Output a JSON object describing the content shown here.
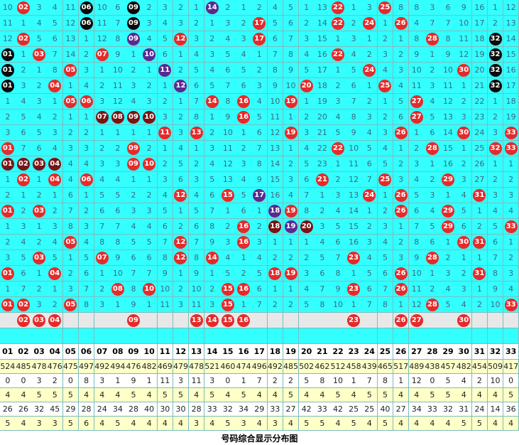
{
  "palette": {
    "r": "#e62a2a",
    "k": "#0a0a0a",
    "p": "#5a2a90",
    "m": "#7a1414"
  },
  "grid": {
    "rows": [
      [
        10,
        {
          "t": "02",
          "c": "r"
        },
        3,
        4,
        11,
        {
          "t": "06",
          "c": "k"
        },
        10,
        6,
        {
          "t": "09",
          "c": "k"
        },
        2,
        3,
        2,
        1,
        {
          "t": "14",
          "c": "p"
        },
        2,
        1,
        2,
        4,
        5,
        1,
        13,
        {
          "t": "22",
          "c": "r"
        },
        1,
        3,
        {
          "t": "25",
          "c": "r"
        },
        8,
        8,
        3,
        6,
        9,
        16,
        1,
        12
      ],
      [
        11,
        1,
        4,
        5,
        12,
        {
          "t": "06",
          "c": "k"
        },
        11,
        7,
        {
          "t": "09",
          "c": "k"
        },
        3,
        4,
        3,
        2,
        1,
        3,
        2,
        {
          "t": "17",
          "c": "r"
        },
        5,
        6,
        2,
        14,
        {
          "t": "22",
          "c": "r"
        },
        2,
        {
          "t": "24",
          "c": "r"
        },
        1,
        {
          "t": "26",
          "c": "r"
        },
        4,
        7,
        7,
        10,
        17,
        2,
        13
      ],
      [
        12,
        {
          "t": "02",
          "c": "r"
        },
        5,
        6,
        13,
        1,
        12,
        8,
        {
          "t": "09",
          "c": "p"
        },
        4,
        5,
        {
          "t": "12",
          "c": "r"
        },
        3,
        2,
        4,
        3,
        {
          "t": "17",
          "c": "r"
        },
        6,
        7,
        3,
        15,
        1,
        3,
        1,
        2,
        1,
        8,
        {
          "t": "28",
          "c": "r"
        },
        8,
        11,
        18,
        {
          "t": "32",
          "c": "k"
        },
        14
      ],
      [
        {
          "t": "01",
          "c": "k"
        },
        1,
        {
          "t": "03",
          "c": "r"
        },
        7,
        14,
        2,
        {
          "t": "07",
          "c": "r"
        },
        9,
        1,
        {
          "t": "10",
          "c": "p"
        },
        6,
        1,
        4,
        3,
        5,
        4,
        1,
        7,
        8,
        4,
        16,
        {
          "t": "22",
          "c": "r"
        },
        4,
        2,
        3,
        2,
        9,
        1,
        9,
        12,
        19,
        {
          "t": "32",
          "c": "k"
        },
        15
      ],
      [
        {
          "t": "01",
          "c": "k"
        },
        2,
        1,
        8,
        {
          "t": "05",
          "c": "r"
        },
        3,
        1,
        10,
        2,
        1,
        {
          "t": "11",
          "c": "p"
        },
        2,
        5,
        4,
        6,
        5,
        2,
        8,
        9,
        5,
        17,
        1,
        5,
        {
          "t": "24",
          "c": "r"
        },
        4,
        3,
        10,
        2,
        10,
        {
          "t": "30",
          "c": "r"
        },
        20,
        {
          "t": "32",
          "c": "k"
        },
        16
      ],
      [
        {
          "t": "01",
          "c": "k"
        },
        3,
        2,
        {
          "t": "04",
          "c": "r"
        },
        1,
        4,
        2,
        11,
        3,
        2,
        1,
        {
          "t": "12",
          "c": "p"
        },
        6,
        5,
        7,
        6,
        3,
        9,
        10,
        {
          "t": "20",
          "c": "r"
        },
        18,
        2,
        6,
        1,
        {
          "t": "25",
          "c": "r"
        },
        4,
        11,
        3,
        11,
        1,
        21,
        {
          "t": "32",
          "c": "k"
        },
        17
      ],
      [
        1,
        4,
        3,
        1,
        {
          "t": "05",
          "c": "r"
        },
        {
          "t": "06",
          "c": "r"
        },
        3,
        12,
        4,
        3,
        2,
        1,
        7,
        {
          "t": "14",
          "c": "r"
        },
        8,
        {
          "t": "16",
          "c": "r"
        },
        4,
        10,
        {
          "t": "19",
          "c": "r"
        },
        1,
        19,
        3,
        7,
        2,
        1,
        5,
        {
          "t": "27",
          "c": "r"
        },
        4,
        12,
        2,
        22,
        1,
        18
      ],
      [
        2,
        5,
        4,
        2,
        1,
        1,
        {
          "t": "07",
          "c": "m"
        },
        {
          "t": "08",
          "c": "m"
        },
        {
          "t": "09",
          "c": "m"
        },
        {
          "t": "10",
          "c": "m"
        },
        3,
        2,
        8,
        1,
        9,
        {
          "t": "16",
          "c": "r"
        },
        5,
        11,
        1,
        2,
        20,
        4,
        8,
        3,
        2,
        6,
        {
          "t": "27",
          "c": "r"
        },
        5,
        13,
        3,
        23,
        2,
        19
      ],
      [
        3,
        6,
        5,
        3,
        2,
        2,
        1,
        1,
        1,
        1,
        {
          "t": "11",
          "c": "r"
        },
        3,
        {
          "t": "13",
          "c": "r"
        },
        2,
        10,
        1,
        6,
        12,
        {
          "t": "19",
          "c": "r"
        },
        3,
        21,
        5,
        9,
        4,
        3,
        {
          "t": "26",
          "c": "r"
        },
        1,
        6,
        14,
        {
          "t": "30",
          "c": "r"
        },
        24,
        3,
        {
          "t": "33",
          "c": "r"
        }
      ],
      [
        {
          "t": "01",
          "c": "r"
        },
        7,
        6,
        4,
        3,
        3,
        2,
        2,
        {
          "t": "09",
          "c": "r"
        },
        2,
        1,
        4,
        1,
        3,
        11,
        2,
        7,
        13,
        1,
        4,
        22,
        {
          "t": "22",
          "c": "r"
        },
        10,
        5,
        4,
        1,
        2,
        {
          "t": "28",
          "c": "r"
        },
        15,
        1,
        25,
        {
          "t": "32",
          "c": "r"
        },
        {
          "t": "33",
          "c": "r"
        }
      ],
      [
        {
          "t": "01",
          "c": "m"
        },
        {
          "t": "02",
          "c": "m"
        },
        {
          "t": "03",
          "c": "m"
        },
        {
          "t": "04",
          "c": "m"
        },
        4,
        4,
        3,
        3,
        {
          "t": "09",
          "c": "r"
        },
        {
          "t": "10",
          "c": "r"
        },
        2,
        5,
        2,
        4,
        12,
        3,
        8,
        14,
        2,
        5,
        23,
        1,
        11,
        6,
        5,
        2,
        3,
        1,
        16,
        2,
        26,
        1,
        1
      ],
      [
        1,
        {
          "t": "02",
          "c": "r"
        },
        1,
        {
          "t": "04",
          "c": "r"
        },
        4,
        {
          "t": "06",
          "c": "r"
        },
        4,
        4,
        1,
        1,
        3,
        6,
        3,
        5,
        13,
        4,
        9,
        15,
        3,
        6,
        {
          "t": "21",
          "c": "r"
        },
        2,
        12,
        7,
        {
          "t": "25",
          "c": "r"
        },
        3,
        4,
        2,
        {
          "t": "29",
          "c": "r"
        },
        3,
        27,
        2,
        2
      ],
      [
        2,
        1,
        2,
        1,
        6,
        1,
        5,
        5,
        2,
        2,
        4,
        {
          "t": "12",
          "c": "r"
        },
        4,
        6,
        {
          "t": "15",
          "c": "r"
        },
        5,
        {
          "t": "17",
          "c": "p"
        },
        16,
        4,
        7,
        1,
        3,
        13,
        {
          "t": "24",
          "c": "r"
        },
        1,
        {
          "t": "26",
          "c": "r"
        },
        5,
        3,
        1,
        4,
        {
          "t": "31",
          "c": "r"
        },
        3,
        3
      ],
      [
        {
          "t": "01",
          "c": "r"
        },
        2,
        {
          "t": "03",
          "c": "r"
        },
        2,
        7,
        2,
        6,
        6,
        3,
        3,
        5,
        1,
        5,
        7,
        1,
        6,
        1,
        {
          "t": "18",
          "c": "p"
        },
        {
          "t": "19",
          "c": "r"
        },
        8,
        2,
        4,
        14,
        1,
        2,
        {
          "t": "26",
          "c": "r"
        },
        6,
        4,
        {
          "t": "29",
          "c": "r"
        },
        5,
        1,
        4,
        4
      ],
      [
        1,
        3,
        1,
        3,
        8,
        3,
        7,
        7,
        4,
        4,
        6,
        2,
        6,
        8,
        2,
        {
          "t": "16",
          "c": "r"
        },
        2,
        {
          "t": "18",
          "c": "m"
        },
        {
          "t": "19",
          "c": "p"
        },
        {
          "t": "20",
          "c": "m"
        },
        3,
        5,
        15,
        2,
        3,
        1,
        7,
        5,
        {
          "t": "29",
          "c": "r"
        },
        6,
        2,
        5,
        {
          "t": "33",
          "c": "r"
        }
      ],
      [
        2,
        4,
        2,
        4,
        {
          "t": "05",
          "c": "r"
        },
        4,
        8,
        8,
        5,
        5,
        7,
        {
          "t": "12",
          "c": "r"
        },
        7,
        9,
        3,
        {
          "t": "16",
          "c": "r"
        },
        3,
        1,
        1,
        1,
        4,
        6,
        16,
        3,
        4,
        2,
        8,
        6,
        1,
        {
          "t": "30",
          "c": "r"
        },
        {
          "t": "31",
          "c": "r"
        },
        6,
        1
      ],
      [
        3,
        5,
        {
          "t": "03",
          "c": "r"
        },
        5,
        1,
        5,
        {
          "t": "07",
          "c": "r"
        },
        9,
        6,
        6,
        8,
        {
          "t": "12",
          "c": "r"
        },
        8,
        {
          "t": "14",
          "c": "r"
        },
        4,
        1,
        4,
        2,
        2,
        2,
        5,
        7,
        {
          "t": "23",
          "c": "r"
        },
        4,
        5,
        3,
        9,
        {
          "t": "28",
          "c": "r"
        },
        2,
        1,
        1,
        7,
        2
      ],
      [
        {
          "t": "01",
          "c": "r"
        },
        6,
        1,
        {
          "t": "04",
          "c": "r"
        },
        2,
        6,
        1,
        10,
        7,
        7,
        9,
        1,
        9,
        1,
        5,
        2,
        5,
        {
          "t": "18",
          "c": "r"
        },
        {
          "t": "19",
          "c": "r"
        },
        3,
        6,
        8,
        1,
        5,
        6,
        {
          "t": "26",
          "c": "r"
        },
        10,
        1,
        3,
        2,
        {
          "t": "31",
          "c": "r"
        },
        8,
        3
      ],
      [
        1,
        7,
        2,
        1,
        3,
        7,
        2,
        {
          "t": "08",
          "c": "r"
        },
        8,
        {
          "t": "10",
          "c": "r"
        },
        10,
        2,
        10,
        2,
        {
          "t": "15",
          "c": "r"
        },
        {
          "t": "16",
          "c": "r"
        },
        6,
        1,
        1,
        4,
        7,
        9,
        {
          "t": "23",
          "c": "r"
        },
        6,
        7,
        {
          "t": "26",
          "c": "r"
        },
        11,
        2,
        4,
        3,
        1,
        9,
        4
      ],
      [
        {
          "t": "01",
          "c": "r"
        },
        {
          "t": "02",
          "c": "r"
        },
        3,
        2,
        {
          "t": "05",
          "c": "r"
        },
        8,
        3,
        1,
        9,
        1,
        11,
        3,
        11,
        3,
        {
          "t": "15",
          "c": "r"
        },
        1,
        7,
        2,
        2,
        5,
        8,
        10,
        1,
        7,
        8,
        1,
        12,
        {
          "t": "28",
          "c": "r"
        },
        5,
        4,
        2,
        10,
        {
          "t": "33",
          "c": "r"
        }
      ]
    ]
  },
  "predicted": [
    null,
    "02",
    "03",
    "04",
    null,
    null,
    null,
    null,
    "09",
    null,
    null,
    null,
    "13",
    "14",
    "15",
    "16",
    null,
    null,
    null,
    null,
    null,
    null,
    "23",
    null,
    null,
    "26",
    "27",
    null,
    null,
    "30",
    null,
    null,
    null
  ],
  "header": [
    "01",
    "02",
    "03",
    "04",
    "05",
    "06",
    "07",
    "08",
    "09",
    "10",
    "11",
    "12",
    "13",
    "14",
    "15",
    "16",
    "17",
    "18",
    "19",
    "20",
    "21",
    "22",
    "23",
    "24",
    "25",
    "26",
    "27",
    "28",
    "29",
    "30",
    "31",
    "32",
    "33"
  ],
  "stats": [
    [
      524,
      485,
      478,
      476,
      475,
      497,
      492,
      494,
      476,
      482,
      469,
      479,
      478,
      521,
      460,
      474,
      496,
      492,
      485,
      502,
      462,
      512,
      458,
      439,
      465,
      517,
      489,
      438,
      457,
      482,
      454,
      509,
      417
    ],
    [
      0,
      0,
      3,
      2,
      0,
      8,
      3,
      1,
      9,
      1,
      11,
      3,
      11,
      3,
      0,
      1,
      7,
      2,
      2,
      5,
      8,
      10,
      1,
      7,
      8,
      1,
      12,
      0,
      5,
      4,
      2,
      10,
      0
    ],
    [
      4,
      4,
      5,
      5,
      5,
      4,
      4,
      4,
      5,
      4,
      5,
      5,
      4,
      5,
      4,
      5,
      4,
      4,
      5,
      4,
      4,
      5,
      4,
      5,
      5,
      4,
      4,
      5,
      5,
      4,
      4,
      4,
      5
    ],
    [
      26,
      26,
      32,
      45,
      29,
      28,
      24,
      34,
      28,
      40,
      30,
      30,
      28,
      33,
      32,
      34,
      29,
      33,
      27,
      42,
      33,
      42,
      25,
      25,
      40,
      27,
      34,
      33,
      32,
      31,
      24,
      14,
      36
    ],
    [
      5,
      4,
      3,
      3,
      5,
      6,
      4,
      5,
      4,
      4,
      4,
      4,
      3,
      4,
      5,
      3,
      4,
      3,
      4,
      5,
      5,
      4,
      5,
      4,
      5,
      4,
      4,
      4,
      4,
      5,
      5,
      4,
      4
    ]
  ],
  "footer": "号码综合显示分布图"
}
